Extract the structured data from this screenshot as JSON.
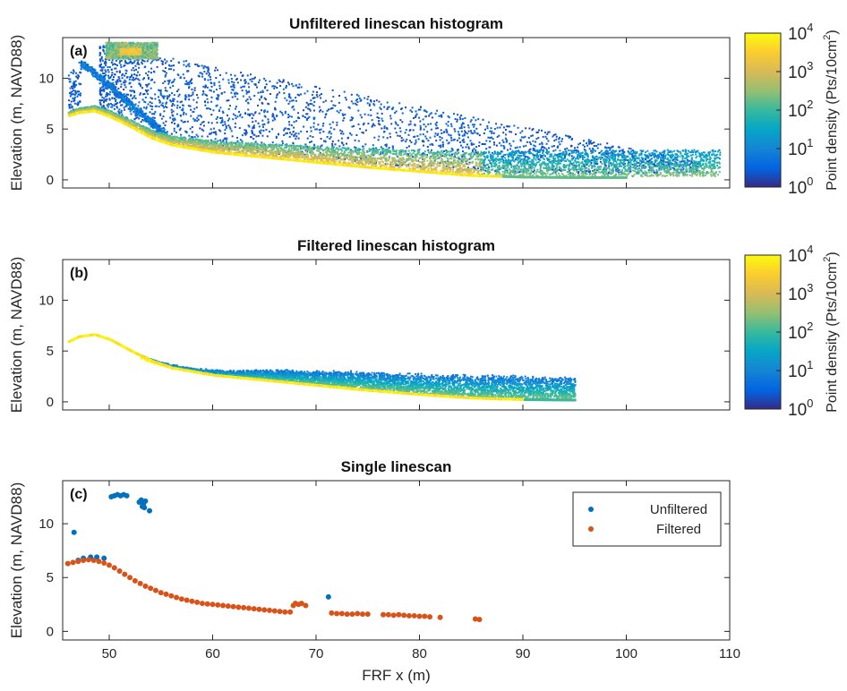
{
  "chart_data": [
    {
      "type": "heatmap",
      "panel_label": "(a)",
      "title": "Unfiltered linescan histogram",
      "xlabel": "",
      "ylabel": "Elevation (m, NAVD88)",
      "xlim": [
        45.5,
        110
      ],
      "ylim": [
        -0.8,
        14
      ],
      "xticks": [
        50,
        60,
        70,
        80,
        90,
        100,
        110
      ],
      "yticks": [
        0,
        5,
        10
      ],
      "colorbar": {
        "label_main": "Point density (Pts/10cm",
        "label_sup": "2",
        "label_close": ")",
        "scale": "log",
        "ticks": [
          {
            "base": "10",
            "exp": "0"
          },
          {
            "base": "10",
            "exp": "1"
          },
          {
            "base": "10",
            "exp": "2"
          },
          {
            "base": "10",
            "exp": "3"
          },
          {
            "base": "10",
            "exp": "4"
          }
        ]
      },
      "profile": {
        "x": [
          46,
          47,
          48.5,
          50,
          52,
          54,
          56,
          60,
          65,
          70,
          75,
          80,
          85,
          90,
          95,
          100,
          105
        ],
        "y": [
          6.5,
          6.8,
          6.95,
          6.4,
          5.4,
          4.3,
          3.6,
          2.9,
          2.4,
          1.9,
          1.4,
          1.0,
          0.6,
          0.45,
          0.4,
          0.4,
          0.45
        ]
      },
      "scatter_extent": {
        "x": [
          46,
          109
        ],
        "y": [
          0,
          13.5
        ]
      }
    },
    {
      "type": "heatmap",
      "panel_label": "(b)",
      "title": "Filtered linescan histogram",
      "xlabel": "",
      "ylabel": "Elevation (m, NAVD88)",
      "xlim": [
        45.5,
        110
      ],
      "ylim": [
        -0.8,
        14
      ],
      "xticks": [
        50,
        60,
        70,
        80,
        90,
        100,
        110
      ],
      "yticks": [
        0,
        5,
        10
      ],
      "colorbar": {
        "label_main": "Point density (Pts/10cm",
        "label_sup": "2",
        "label_close": ")",
        "scale": "log",
        "ticks": [
          {
            "base": "10",
            "exp": "0"
          },
          {
            "base": "10",
            "exp": "1"
          },
          {
            "base": "10",
            "exp": "2"
          },
          {
            "base": "10",
            "exp": "3"
          },
          {
            "base": "10",
            "exp": "4"
          }
        ]
      },
      "profile": {
        "x": [
          46,
          47,
          48.5,
          50,
          52,
          54,
          56,
          60,
          65,
          70,
          75,
          80,
          85,
          90,
          95
        ],
        "y": [
          6.1,
          6.6,
          6.8,
          6.3,
          5.2,
          4.2,
          3.5,
          2.8,
          2.3,
          1.8,
          1.3,
          0.9,
          0.55,
          0.4,
          0.35
        ]
      },
      "upper_envelope": {
        "x": [
          53,
          55,
          58,
          62,
          65,
          70,
          75,
          80,
          85,
          90,
          95
        ],
        "y": [
          4.4,
          3.8,
          3.2,
          3.0,
          3.1,
          3.0,
          2.9,
          2.7,
          2.6,
          2.5,
          2.3
        ]
      }
    },
    {
      "type": "scatter",
      "panel_label": "(c)",
      "title": "Single linescan",
      "xlabel": "FRF x (m)",
      "ylabel": "Elevation (m, NAVD88)",
      "xlim": [
        45.5,
        110
      ],
      "ylim": [
        -0.8,
        14
      ],
      "xticks": [
        50,
        60,
        70,
        80,
        90,
        100,
        110
      ],
      "yticks": [
        0,
        5,
        10
      ],
      "legend_position": "top-right",
      "series": [
        {
          "name": "Unfiltered",
          "color": "#0072BD",
          "x": [
            46.6,
            50.2,
            50.5,
            50.8,
            51.1,
            51.4,
            51.7,
            52.9,
            53.1,
            53.3,
            53.5,
            53.4,
            53.2,
            53.9,
            71.2,
            47.0,
            47.5,
            48.2,
            48.8,
            49.5
          ],
          "y": [
            9.2,
            12.5,
            12.6,
            12.7,
            12.6,
            12.7,
            12.6,
            12.0,
            12.2,
            11.8,
            12.1,
            11.5,
            11.6,
            11.2,
            3.2,
            6.6,
            6.8,
            6.9,
            6.9,
            6.8
          ]
        },
        {
          "name": "Filtered",
          "color": "#D95319",
          "x": [
            46.0,
            46.5,
            47.0,
            47.5,
            48.0,
            48.5,
            49.0,
            49.5,
            50.0,
            50.5,
            51.0,
            51.5,
            52.0,
            52.5,
            53.0,
            53.5,
            54.0,
            54.5,
            55.0,
            55.5,
            56.0,
            56.5,
            57.0,
            57.5,
            58.0,
            58.5,
            59.0,
            59.5,
            60.0,
            60.5,
            61.0,
            61.5,
            62.0,
            62.5,
            63.0,
            63.5,
            64.0,
            64.5,
            65.0,
            65.5,
            66.0,
            66.5,
            67.0,
            67.5,
            67.8,
            68.0,
            68.3,
            68.6,
            69.0,
            71.5,
            72.0,
            72.5,
            73.0,
            73.5,
            74.0,
            74.5,
            75.0,
            76.5,
            77.0,
            77.5,
            78.0,
            78.5,
            79.0,
            79.5,
            80.0,
            80.5,
            81.0,
            82.0,
            85.4,
            85.8
          ],
          "y": [
            6.3,
            6.4,
            6.5,
            6.6,
            6.65,
            6.6,
            6.5,
            6.35,
            6.15,
            5.9,
            5.6,
            5.3,
            5.0,
            4.7,
            4.45,
            4.2,
            4.0,
            3.8,
            3.6,
            3.45,
            3.3,
            3.15,
            3.0,
            2.9,
            2.8,
            2.7,
            2.6,
            2.55,
            2.5,
            2.45,
            2.4,
            2.35,
            2.3,
            2.25,
            2.2,
            2.15,
            2.1,
            2.05,
            2.0,
            1.95,
            1.9,
            1.85,
            1.8,
            1.8,
            2.4,
            2.6,
            2.5,
            2.6,
            2.4,
            1.7,
            1.65,
            1.65,
            1.6,
            1.6,
            1.65,
            1.6,
            1.6,
            1.55,
            1.55,
            1.5,
            1.55,
            1.5,
            1.45,
            1.45,
            1.4,
            1.4,
            1.35,
            1.3,
            1.15,
            1.1
          ]
        }
      ]
    }
  ]
}
